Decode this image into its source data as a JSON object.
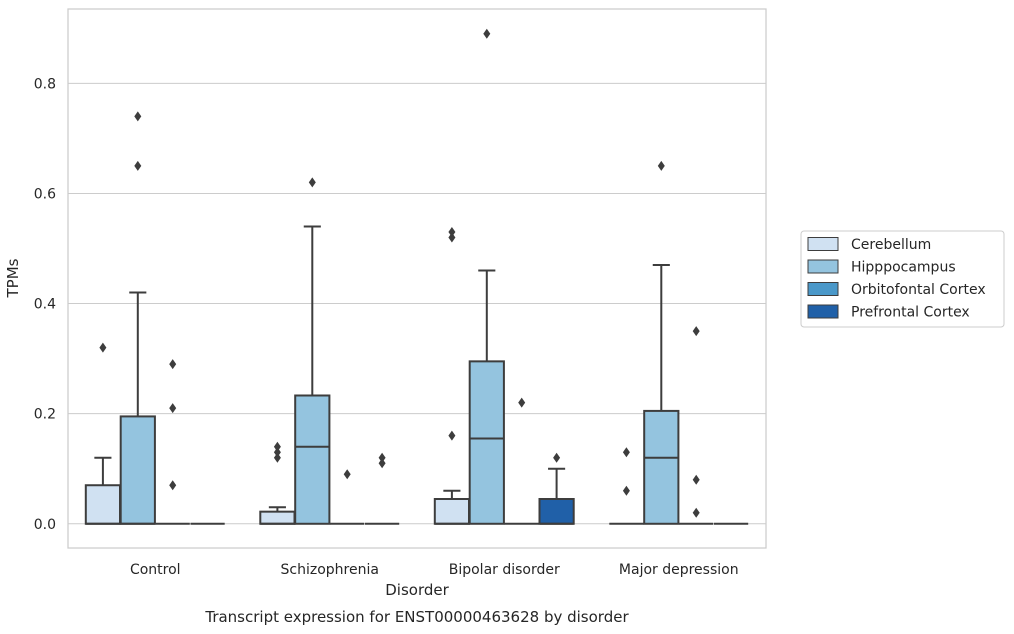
{
  "chart_data": {
    "type": "box",
    "title": "",
    "caption": "Transcript expression for ENST00000463628 by disorder",
    "xlabel": "Disorder",
    "ylabel": "TPMs",
    "categories": [
      "Control",
      "Schizophrenia",
      "Bipolar disorder",
      "Major depression"
    ],
    "yticks": [
      0.0,
      0.2,
      0.4,
      0.6,
      0.8
    ],
    "ytick_labels": [
      "0.0",
      "0.2",
      "0.4",
      "0.6",
      "0.8"
    ],
    "ylim": [
      -0.044,
      0.935
    ],
    "grid": "horizontal",
    "legend_position": "right",
    "series": [
      {
        "name": "Cerebellum",
        "color": "#d0e1f2",
        "boxes": [
          {
            "q1": 0.0,
            "median": 0.0,
            "q3": 0.07,
            "whisker_low": 0.0,
            "whisker_high": 0.12,
            "outliers": [
              0.32
            ]
          },
          {
            "q1": 0.0,
            "median": 0.0,
            "q3": 0.022,
            "whisker_low": 0.0,
            "whisker_high": 0.03,
            "outliers": [
              0.12,
              0.13,
              0.14
            ]
          },
          {
            "q1": 0.0,
            "median": 0.0,
            "q3": 0.045,
            "whisker_low": 0.0,
            "whisker_high": 0.06,
            "outliers": [
              0.16,
              0.52,
              0.53
            ]
          },
          {
            "q1": 0.0,
            "median": 0.0,
            "q3": 0.0,
            "whisker_low": 0.0,
            "whisker_high": 0.0,
            "outliers": [
              0.06,
              0.13
            ]
          }
        ]
      },
      {
        "name": "Hipppocampus",
        "color": "#94c4df",
        "boxes": [
          {
            "q1": 0.0,
            "median": 0.0,
            "q3": 0.195,
            "whisker_low": 0.0,
            "whisker_high": 0.42,
            "outliers": [
              0.65,
              0.74
            ]
          },
          {
            "q1": 0.0,
            "median": 0.14,
            "q3": 0.233,
            "whisker_low": 0.0,
            "whisker_high": 0.54,
            "outliers": [
              0.62
            ]
          },
          {
            "q1": 0.0,
            "median": 0.155,
            "q3": 0.295,
            "whisker_low": 0.0,
            "whisker_high": 0.46,
            "outliers": [
              0.89
            ]
          },
          {
            "q1": 0.0,
            "median": 0.12,
            "q3": 0.205,
            "whisker_low": 0.0,
            "whisker_high": 0.47,
            "outliers": [
              0.65
            ]
          }
        ]
      },
      {
        "name": "Orbitofontal Cortex",
        "color": "#4a98c9",
        "boxes": [
          {
            "q1": 0.0,
            "median": 0.0,
            "q3": 0.0,
            "whisker_low": 0.0,
            "whisker_high": 0.0,
            "outliers": [
              0.07,
              0.21,
              0.29
            ]
          },
          {
            "q1": 0.0,
            "median": 0.0,
            "q3": 0.0,
            "whisker_low": 0.0,
            "whisker_high": 0.0,
            "outliers": [
              0.09
            ]
          },
          {
            "q1": 0.0,
            "median": 0.0,
            "q3": 0.0,
            "whisker_low": 0.0,
            "whisker_high": 0.0,
            "outliers": [
              0.22
            ]
          },
          {
            "q1": 0.0,
            "median": 0.0,
            "q3": 0.0,
            "whisker_low": 0.0,
            "whisker_high": 0.0,
            "outliers": [
              0.02,
              0.08,
              0.35
            ]
          }
        ]
      },
      {
        "name": "Prefrontal Cortex",
        "color": "#2060a8",
        "boxes": [
          {
            "q1": 0.0,
            "median": 0.0,
            "q3": 0.0,
            "whisker_low": 0.0,
            "whisker_high": 0.0,
            "outliers": []
          },
          {
            "q1": 0.0,
            "median": 0.0,
            "q3": 0.0,
            "whisker_low": 0.0,
            "whisker_high": 0.0,
            "outliers": [
              0.11,
              0.12
            ]
          },
          {
            "q1": 0.0,
            "median": 0.0,
            "q3": 0.045,
            "whisker_low": 0.0,
            "whisker_high": 0.1,
            "outliers": [
              0.12
            ]
          },
          {
            "q1": 0.0,
            "median": 0.0,
            "q3": 0.0,
            "whisker_low": 0.0,
            "whisker_high": 0.0,
            "outliers": []
          }
        ]
      }
    ]
  }
}
